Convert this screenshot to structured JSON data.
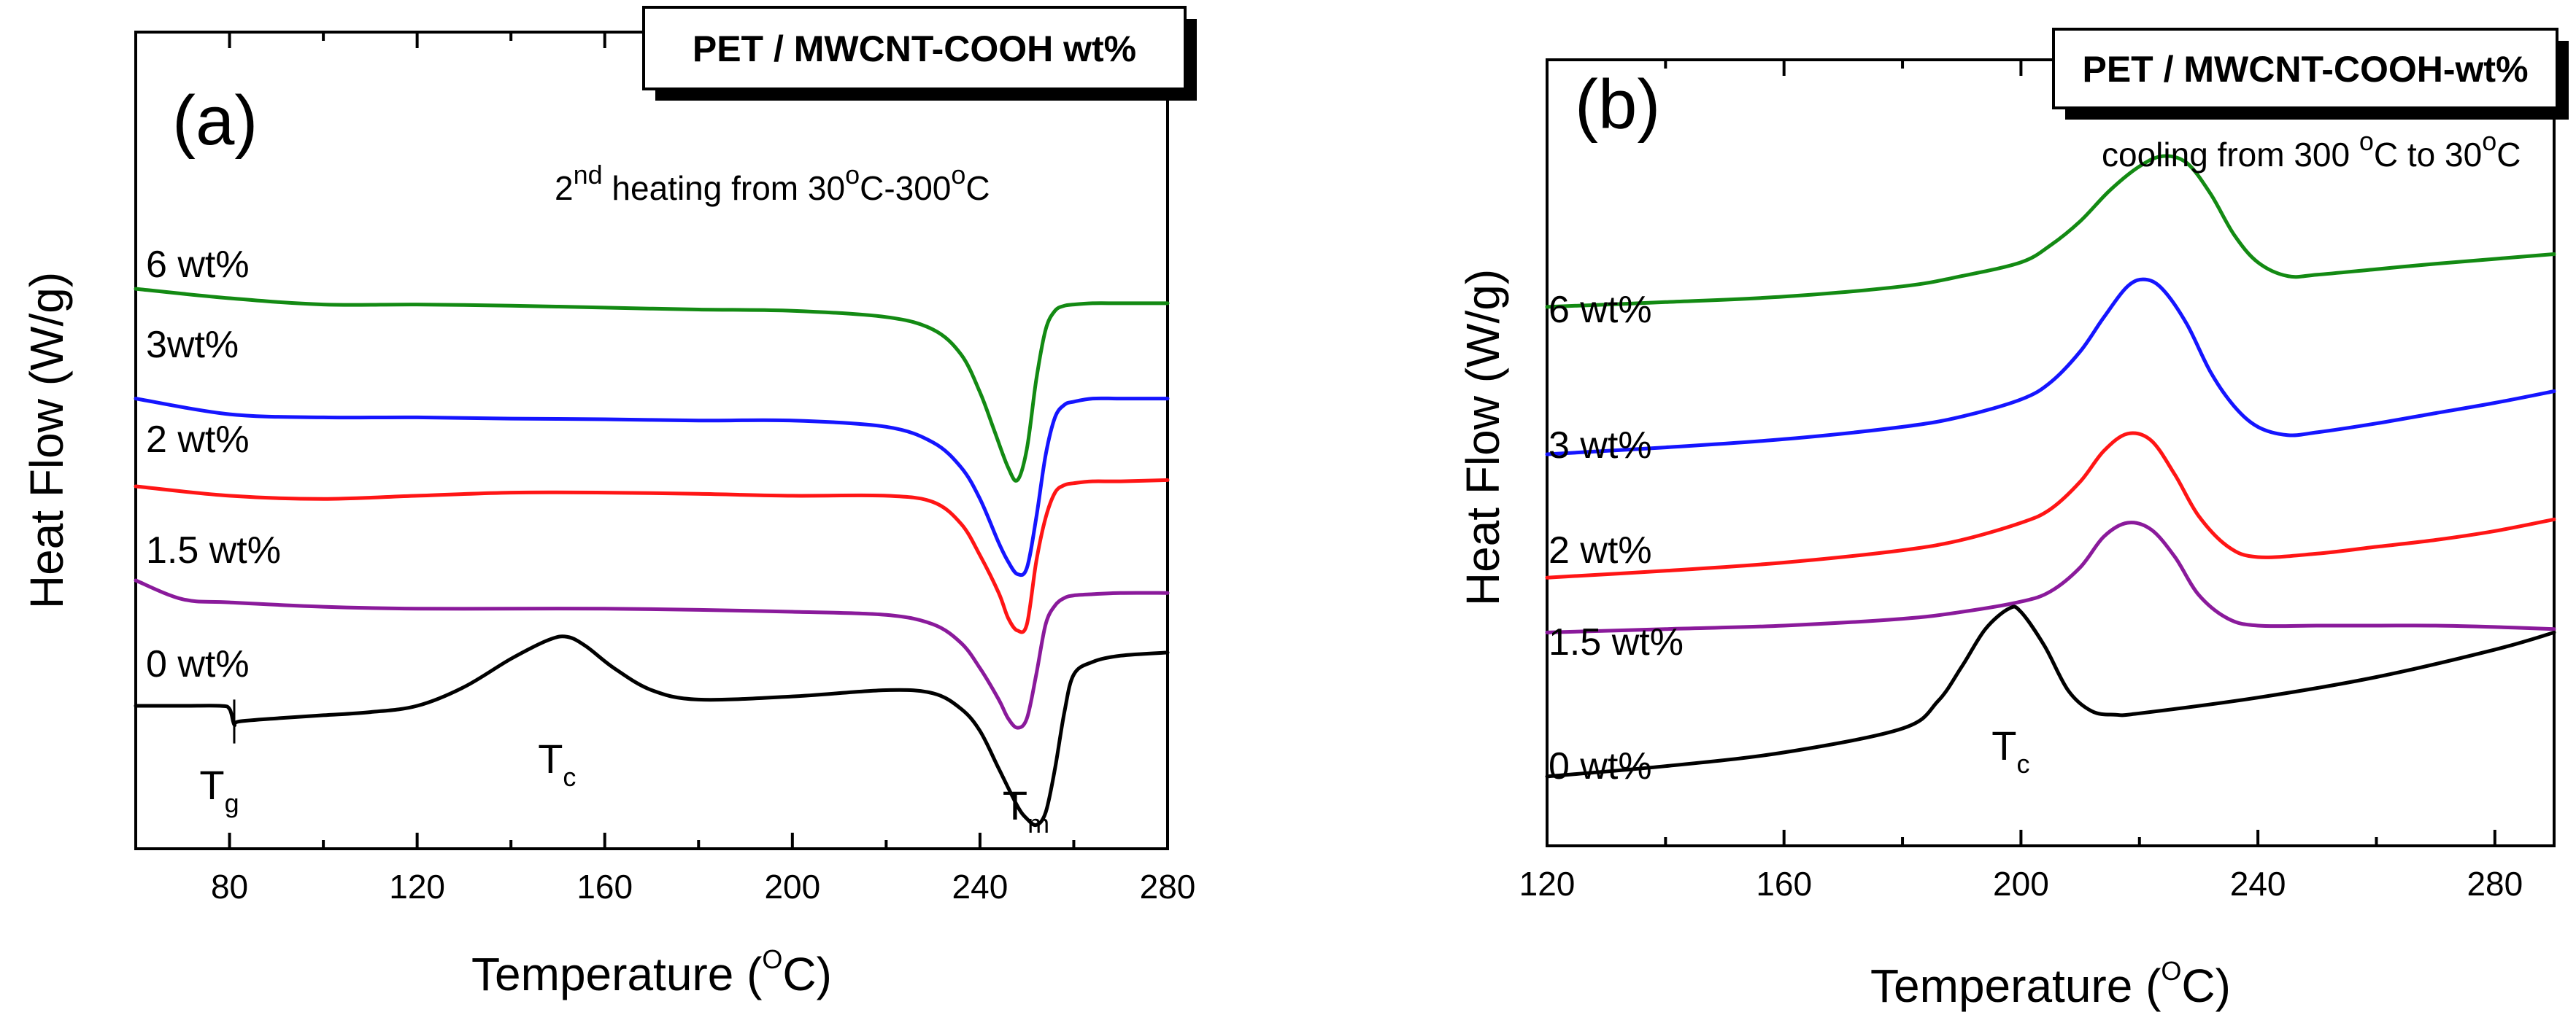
{
  "chart_data": [
    {
      "type": "line",
      "panel_label": "(a)",
      "legend_title": "PET  / MWCNT-COOH  wt%",
      "note": {
        "prefix": "2",
        "sup": "nd",
        "rest": " heating from 30",
        "deg": "o",
        "mid": "C-300",
        "deg2": "o",
        "end": "C"
      },
      "xlabel": {
        "prefix": "Temperature (",
        "sup": "O",
        "suffix": "C)"
      },
      "ylabel": "Heat Flow (W/g)",
      "xlim": [
        60,
        280
      ],
      "ylim": [
        0,
        10
      ],
      "xticks": [
        "80",
        "120",
        "160",
        "200",
        "240",
        "280"
      ],
      "yticks_shown": false,
      "annotations": [
        {
          "main": "T",
          "sub": "g",
          "x": 80
        },
        {
          "main": "T",
          "sub": "c",
          "x": 152
        },
        {
          "main": "T",
          "sub": "m",
          "x": 252
        }
      ],
      "series": [
        {
          "name": "6 wt%",
          "color": "#138a13",
          "x": [
            60,
            80,
            100,
            120,
            140,
            160,
            180,
            200,
            220,
            230,
            236,
            240,
            243,
            246,
            248,
            250,
            252,
            254,
            256,
            258,
            260,
            264,
            270,
            280
          ],
          "y": [
            8.65,
            8.5,
            8.4,
            8.4,
            8.38,
            8.35,
            8.32,
            8.3,
            8.2,
            8.0,
            7.6,
            7.0,
            6.4,
            5.8,
            5.6,
            6.1,
            7.2,
            8.0,
            8.3,
            8.38,
            8.4,
            8.42,
            8.42,
            8.42
          ]
        },
        {
          "name": "3wt%",
          "color": "#1515ff",
          "x": [
            60,
            80,
            100,
            120,
            140,
            160,
            180,
            200,
            220,
            230,
            236,
            240,
            244,
            246,
            248,
            250,
            252,
            254,
            256,
            258,
            260,
            264,
            270,
            280
          ],
          "y": [
            6.9,
            6.65,
            6.6,
            6.6,
            6.58,
            6.57,
            6.55,
            6.55,
            6.45,
            6.2,
            5.8,
            5.3,
            4.6,
            4.3,
            4.1,
            4.2,
            5.0,
            6.0,
            6.6,
            6.8,
            6.85,
            6.9,
            6.9,
            6.9
          ]
        },
        {
          "name": "2 wt%",
          "color": "#ff1515",
          "x": [
            60,
            80,
            100,
            120,
            140,
            160,
            180,
            200,
            220,
            230,
            236,
            240,
            244,
            246,
            248,
            250,
            252,
            254,
            256,
            258,
            260,
            264,
            270,
            280
          ],
          "y": [
            5.5,
            5.35,
            5.3,
            5.35,
            5.4,
            5.4,
            5.38,
            5.35,
            5.35,
            5.25,
            4.9,
            4.4,
            3.8,
            3.4,
            3.2,
            3.3,
            4.3,
            5.0,
            5.4,
            5.52,
            5.55,
            5.58,
            5.58,
            5.6
          ]
        },
        {
          "name": "1.5 wt%",
          "color": "#8a1a9b",
          "x": [
            60,
            70,
            80,
            100,
            120,
            140,
            160,
            180,
            200,
            220,
            230,
            236,
            240,
            244,
            246,
            248,
            250,
            252,
            254,
            256,
            258,
            260,
            264,
            270,
            280
          ],
          "y": [
            4.0,
            3.7,
            3.65,
            3.58,
            3.55,
            3.55,
            3.55,
            3.53,
            3.5,
            3.45,
            3.3,
            3.0,
            2.6,
            2.1,
            1.8,
            1.65,
            1.8,
            2.5,
            3.3,
            3.6,
            3.72,
            3.76,
            3.78,
            3.8,
            3.8
          ]
        },
        {
          "name": "0 wt%",
          "color": "#000000",
          "x": [
            60,
            70,
            78,
            80,
            81,
            82,
            90,
            100,
            110,
            120,
            130,
            140,
            148,
            152,
            156,
            162,
            170,
            180,
            200,
            220,
            230,
            236,
            240,
            244,
            248,
            250,
            252,
            254,
            256,
            258,
            260,
            264,
            270,
            280
          ],
          "y": [
            2.0,
            2.0,
            2.0,
            1.95,
            1.7,
            1.75,
            1.8,
            1.85,
            1.9,
            2.0,
            2.3,
            2.75,
            3.05,
            3.1,
            2.95,
            2.6,
            2.25,
            2.1,
            2.15,
            2.25,
            2.2,
            1.95,
            1.6,
            1.0,
            0.4,
            0.2,
            0.1,
            0.3,
            1.0,
            1.9,
            2.5,
            2.7,
            2.8,
            2.85
          ]
        }
      ]
    },
    {
      "type": "line",
      "panel_label": "(b)",
      "legend_title": "PET / MWCNT-COOH-wt%",
      "note": {
        "prefix": "cooling from 300 ",
        "deg": "o",
        "mid": "C to 30",
        "deg2": "o",
        "end": "C"
      },
      "xlabel": {
        "prefix": "Temperature (",
        "sup": "O",
        "suffix": "C)"
      },
      "ylabel": "Heat Flow (W/g)",
      "xlim": [
        120,
        290
      ],
      "ylim": [
        0,
        10
      ],
      "xticks": [
        "120",
        "160",
        "200",
        "240",
        "280"
      ],
      "yticks_shown": false,
      "annotations": [
        {
          "main": "T",
          "sub": "c",
          "x": 200
        }
      ],
      "series": [
        {
          "name": "6 wt%",
          "color": "#138a13",
          "x": [
            120,
            140,
            160,
            180,
            190,
            200,
            205,
            210,
            215,
            220,
            224,
            228,
            232,
            236,
            240,
            245,
            250,
            260,
            270,
            280,
            290
          ],
          "y": [
            7.65,
            7.72,
            7.8,
            7.95,
            8.1,
            8.3,
            8.55,
            8.9,
            9.35,
            9.7,
            9.85,
            9.75,
            9.3,
            8.7,
            8.3,
            8.1,
            8.12,
            8.2,
            8.28,
            8.35,
            8.42
          ]
        },
        {
          "name": "3 wt%",
          "color": "#1515ff",
          "x": [
            120,
            140,
            160,
            180,
            190,
            200,
            205,
            210,
            214,
            218,
            221,
            224,
            228,
            232,
            236,
            240,
            245,
            250,
            260,
            270,
            280,
            290
          ],
          "y": [
            5.5,
            5.6,
            5.72,
            5.9,
            6.05,
            6.3,
            6.55,
            7.0,
            7.5,
            7.95,
            8.05,
            7.9,
            7.4,
            6.7,
            6.2,
            5.9,
            5.78,
            5.82,
            5.95,
            6.1,
            6.25,
            6.42
          ]
        },
        {
          "name": "2 wt%",
          "color": "#ff1515",
          "x": [
            120,
            140,
            160,
            180,
            190,
            200,
            205,
            210,
            214,
            218,
            222,
            226,
            230,
            235,
            240,
            250,
            260,
            270,
            280,
            290
          ],
          "y": [
            3.7,
            3.8,
            3.92,
            4.1,
            4.25,
            4.5,
            4.7,
            5.1,
            5.55,
            5.8,
            5.7,
            5.2,
            4.6,
            4.15,
            4.0,
            4.05,
            4.15,
            4.25,
            4.38,
            4.55
          ]
        },
        {
          "name": "1.5 wt%",
          "color": "#8a1a9b",
          "x": [
            120,
            140,
            160,
            180,
            190,
            200,
            205,
            210,
            214,
            218,
            222,
            226,
            230,
            235,
            240,
            250,
            260,
            270,
            280,
            290
          ],
          "y": [
            2.9,
            2.95,
            3.0,
            3.1,
            3.2,
            3.35,
            3.5,
            3.85,
            4.3,
            4.5,
            4.4,
            4.0,
            3.45,
            3.1,
            3.0,
            3.0,
            3.0,
            3.0,
            2.98,
            2.95
          ]
        },
        {
          "name": "0 wt%",
          "color": "#000000",
          "x": [
            120,
            140,
            160,
            180,
            186,
            190,
            194,
            198,
            200,
            204,
            208,
            212,
            216,
            220,
            240,
            260,
            280,
            290
          ],
          "y": [
            0.8,
            0.95,
            1.15,
            1.5,
            1.9,
            2.4,
            2.95,
            3.25,
            3.2,
            2.7,
            2.05,
            1.75,
            1.7,
            1.72,
            1.95,
            2.25,
            2.65,
            2.9
          ]
        }
      ]
    }
  ]
}
